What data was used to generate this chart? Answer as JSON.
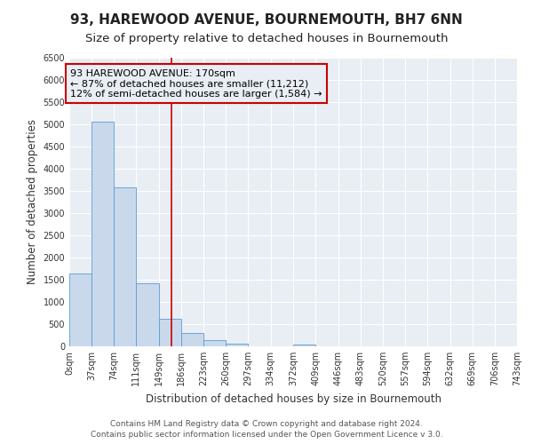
{
  "title": "93, HAREWOOD AVENUE, BOURNEMOUTH, BH7 6NN",
  "subtitle": "Size of property relative to detached houses in Bournemouth",
  "xlabel": "Distribution of detached houses by size in Bournemouth",
  "ylabel": "Number of detached properties",
  "bin_edges": [
    0,
    37,
    74,
    111,
    149,
    186,
    223,
    260,
    297,
    334,
    372,
    409,
    446,
    483,
    520,
    557,
    594,
    632,
    669,
    706,
    743
  ],
  "bin_counts": [
    1650,
    5070,
    3580,
    1430,
    620,
    300,
    150,
    70,
    0,
    0,
    50,
    0,
    0,
    0,
    0,
    0,
    0,
    0,
    0,
    0
  ],
  "bar_color": "#c9d9eb",
  "bar_edge_color": "#5b9bd5",
  "vline_x": 170,
  "vline_color": "#cc0000",
  "annotation_line1": "93 HAREWOOD AVENUE: 170sqm",
  "annotation_line2": "← 87% of detached houses are smaller (11,212)",
  "annotation_line3": "12% of semi-detached houses are larger (1,584) →",
  "annotation_box_color": "#cc0000",
  "ylim": [
    0,
    6500
  ],
  "yticks": [
    0,
    500,
    1000,
    1500,
    2000,
    2500,
    3000,
    3500,
    4000,
    4500,
    5000,
    5500,
    6000,
    6500
  ],
  "xtick_labels": [
    "0sqm",
    "37sqm",
    "74sqm",
    "111sqm",
    "149sqm",
    "186sqm",
    "223sqm",
    "260sqm",
    "297sqm",
    "334sqm",
    "372sqm",
    "409sqm",
    "446sqm",
    "483sqm",
    "520sqm",
    "557sqm",
    "594sqm",
    "632sqm",
    "669sqm",
    "706sqm",
    "743sqm"
  ],
  "footer_line1": "Contains HM Land Registry data © Crown copyright and database right 2024.",
  "footer_line2": "Contains public sector information licensed under the Open Government Licence v 3.0.",
  "bg_color": "#ffffff",
  "plot_bg_color": "#e8eef4",
  "grid_color": "#ffffff",
  "title_fontsize": 11,
  "subtitle_fontsize": 9.5,
  "axis_label_fontsize": 8.5,
  "tick_fontsize": 7,
  "footer_fontsize": 6.5,
  "annotation_fontsize": 8
}
